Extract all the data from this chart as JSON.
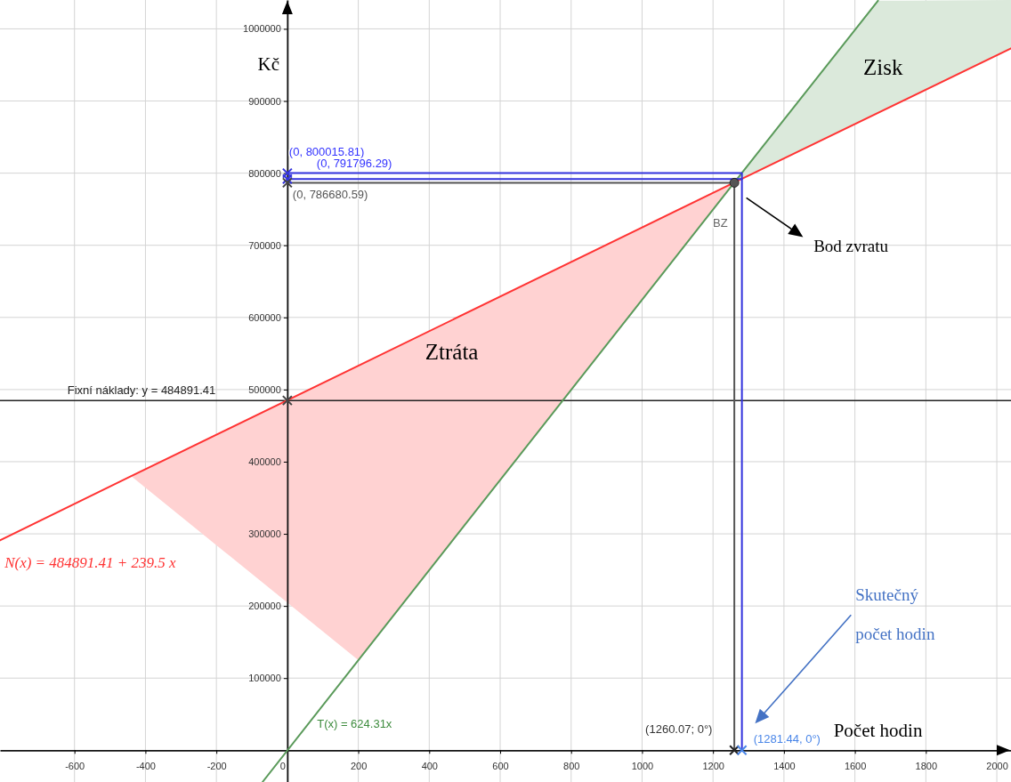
{
  "chart_data": {
    "type": "line",
    "xlabel": "Počet hodin",
    "ylabel": "Kč",
    "xlim": [
      -810,
      2040
    ],
    "ylim": [
      -44000,
      1040000
    ],
    "xticks": [
      -600,
      -400,
      -200,
      0,
      200,
      400,
      600,
      800,
      1000,
      1200,
      1400,
      1600,
      1800,
      2000
    ],
    "yticks": [
      100000,
      200000,
      300000,
      400000,
      500000,
      600000,
      700000,
      800000,
      900000,
      1000000
    ],
    "grid": true,
    "series": [
      {
        "color": "#ff3333",
        "x": [
          -810,
          -440,
          200,
          1260,
          2040
        ],
        "values": [
          291000,
          380000,
          533000,
          787000,
          973000
        ],
        "lower": [
          null,
          380000,
          125000,
          787000,
          null
        ],
        "upper": [
          null,
          380000,
          533000,
          787000,
          null
        ]
      },
      {
        "color": "#5a9a5a",
        "x": [
          -70,
          1260,
          1665,
          2040
        ],
        "values": [
          -44000,
          787000,
          1039000,
          null
        ],
        "lower": [
          null,
          787000,
          884000,
          973000
        ],
        "upper": [
          null,
          787000,
          1039000,
          1040000
        ]
      },
      {
        "color": "#3333dd",
        "x": [
          0,
          1281.44,
          1281.44
        ],
        "values": [
          800015.81,
          800015.81,
          0
        ]
      },
      {
        "color": "#3333dd",
        "x": [
          0,
          1281.44
        ],
        "values": [
          791796.29,
          791796.29
        ]
      },
      {
        "color": "#555555",
        "x": [
          0,
          1260.07,
          1260.07
        ],
        "values": [
          786680.59,
          786680.59,
          0
        ]
      },
      {
        "type": "scatter",
        "marker": "cross",
        "x": [
          0,
          0,
          0,
          0,
          1260.07,
          1281.44
        ],
        "values": [
          800015.81,
          791796.29,
          786680.59,
          484891.41,
          0,
          0
        ],
        "colors": [
          "#3333dd",
          "#3333dd",
          "#444444",
          "#444444",
          "#222222",
          "#4a86e8"
        ]
      },
      {
        "type": "scatter",
        "marker": "circle",
        "color": "#555555",
        "x": [
          1260.07
        ],
        "values": [
          786680.59
        ]
      }
    ],
    "ref_lines": [
      {
        "axis": "y",
        "value": 484891.41,
        "label": "Fixní náklady: y = 484891.41",
        "color": "#222222"
      }
    ],
    "annotations": [
      "Ztráta",
      "Zisk",
      "Bod zvratu",
      "Skutečný počet hodin",
      "N(x) = 484891.41 + 239.5 x",
      "T(x) = 624.31x",
      {
        "text": "(0, 800015.81)",
        "x": 0,
        "y": 800015.81
      },
      {
        "text": "(0, 791796.29)",
        "x": 0,
        "y": 791796.29
      },
      {
        "text": "(0, 786680.59)",
        "x": 0,
        "y": 786680.59
      },
      {
        "text": "BZ",
        "x": 1260.07,
        "y": 786680.59
      },
      {
        "text": "(1260.07; 0°)",
        "x": 1260.07,
        "y": 0
      },
      {
        "text": "(1281.44, 0°)",
        "x": 1281.44,
        "y": 0
      }
    ]
  }
}
